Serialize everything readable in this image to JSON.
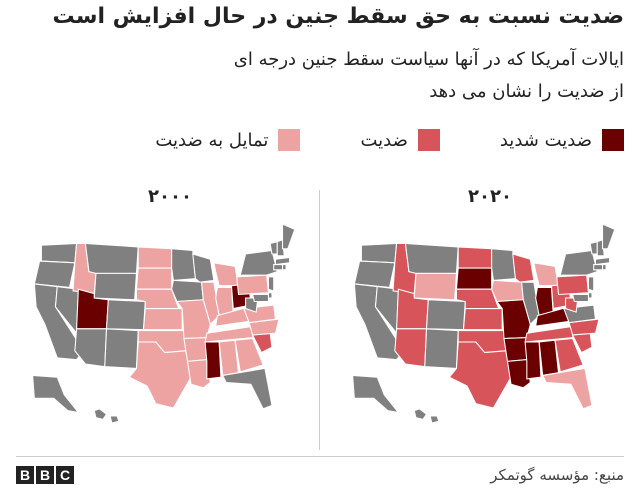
{
  "title": "ضدیت نسبت به حق سقط جنین در حال افزایش است",
  "subtitle": "ایالات آمریکا که در آنها سیاست سقط جنین درجه ای از ضدیت را نشان می دهد",
  "legend": [
    {
      "label": "ضدیت شدید",
      "color": "#6b0000"
    },
    {
      "label": "ضدیت",
      "color": "#d6545a"
    },
    {
      "label": "تمایل به ضدیت",
      "color": "#eea3a3"
    }
  ],
  "colors": {
    "none": "#808080",
    "lean": "#eea3a3",
    "hostile": "#d6545a",
    "very": "#6b0000"
  },
  "maps": {
    "left": {
      "year": "۲۰۰۰",
      "states": {
        "WA": "none",
        "OR": "none",
        "CA": "none",
        "NV": "none",
        "ID": "lean",
        "MT": "none",
        "WY": "none",
        "UT": "very",
        "AZ": "none",
        "CO": "none",
        "NM": "none",
        "ND": "lean",
        "SD": "lean",
        "NE": "lean",
        "KS": "lean",
        "OK": "lean",
        "TX": "lean",
        "MN": "none",
        "IA": "none",
        "MO": "lean",
        "AR": "lean",
        "LA": "lean",
        "WI": "none",
        "IL": "lean",
        "MI": "lean",
        "IN": "lean",
        "OH": "very",
        "KY": "lean",
        "TN": "lean",
        "MS": "very",
        "AL": "lean",
        "GA": "lean",
        "FL": "none",
        "SC": "hostile",
        "NC": "lean",
        "VA": "lean",
        "WV": "none",
        "PA": "lean",
        "NY": "none",
        "VT": "none",
        "NH": "none",
        "ME": "none",
        "MA": "none",
        "CT": "none",
        "RI": "none",
        "NJ": "none",
        "DE": "none",
        "MD": "none",
        "AK": "none",
        "HI": "none"
      }
    },
    "right": {
      "year": "۲۰۲۰",
      "states": {
        "WA": "none",
        "OR": "none",
        "CA": "none",
        "NV": "none",
        "ID": "hostile",
        "MT": "none",
        "WY": "lean",
        "UT": "hostile",
        "AZ": "hostile",
        "CO": "none",
        "NM": "none",
        "ND": "hostile",
        "SD": "very",
        "NE": "hostile",
        "KS": "hostile",
        "OK": "hostile",
        "TX": "hostile",
        "MN": "none",
        "IA": "lean",
        "MO": "very",
        "AR": "very",
        "LA": "very",
        "WI": "hostile",
        "IL": "none",
        "MI": "lean",
        "IN": "very",
        "OH": "hostile",
        "KY": "very",
        "TN": "hostile",
        "MS": "very",
        "AL": "very",
        "GA": "hostile",
        "FL": "lean",
        "SC": "hostile",
        "NC": "hostile",
        "VA": "none",
        "WV": "hostile",
        "PA": "hostile",
        "NY": "none",
        "VT": "none",
        "NH": "none",
        "ME": "none",
        "MA": "none",
        "CT": "none",
        "RI": "none",
        "NJ": "none",
        "DE": "none",
        "MD": "none",
        "AK": "none",
        "HI": "none"
      }
    }
  },
  "footer": {
    "brand": [
      "B",
      "B",
      "C"
    ],
    "source": "منبع: مؤسسه گوتمکر"
  }
}
